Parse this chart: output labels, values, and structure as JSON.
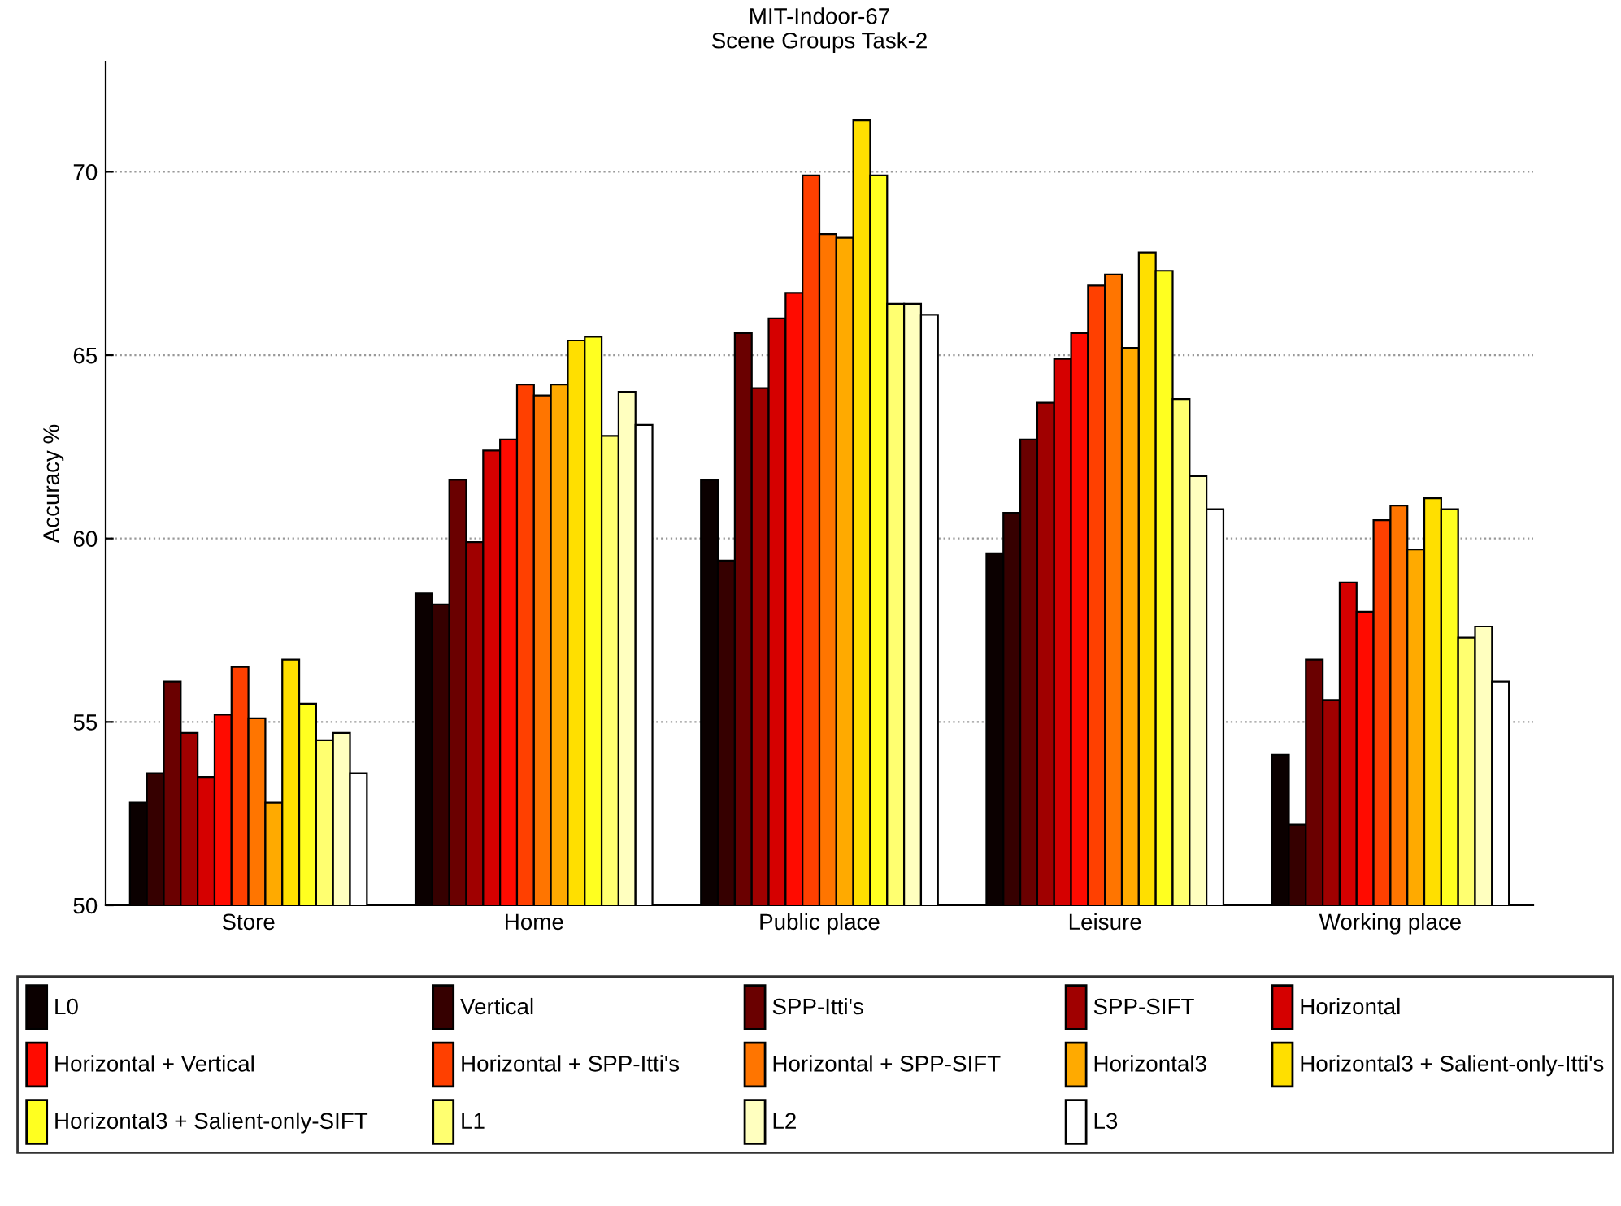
{
  "chart_data": {
    "type": "bar",
    "title": "MIT-Indoor-67\nScene Groups Task-2",
    "ylabel": "Accuracy %",
    "categories": [
      "Store",
      "Home",
      "Public place",
      "Leisure",
      "Working place"
    ],
    "ylim": [
      50,
      73
    ],
    "yticks": [
      50,
      55,
      60,
      65,
      70
    ],
    "grid": "y",
    "legend": "bottom",
    "series": [
      {
        "name": "L0",
        "color": "#0b0000",
        "values": [
          52.8,
          58.5,
          61.6,
          59.6,
          54.1
        ]
      },
      {
        "name": "Vertical",
        "color": "#360000",
        "values": [
          53.6,
          58.2,
          59.4,
          60.7,
          52.2
        ]
      },
      {
        "name": "SPP-Itti's",
        "color": "#6a0000",
        "values": [
          56.1,
          61.6,
          65.6,
          62.7,
          56.7
        ]
      },
      {
        "name": "SPP-SIFT",
        "color": "#a00000",
        "values": [
          54.7,
          59.9,
          64.1,
          63.7,
          55.6
        ]
      },
      {
        "name": "Horizontal",
        "color": "#d50000",
        "values": [
          53.5,
          62.4,
          66.0,
          64.9,
          58.8
        ]
      },
      {
        "name": "Horizontal + Vertical",
        "color": "#ff0b00",
        "values": [
          55.2,
          62.7,
          66.7,
          65.6,
          58.0
        ]
      },
      {
        "name": "Horizontal + SPP-Itti's",
        "color": "#ff4000",
        "values": [
          56.5,
          64.2,
          69.9,
          66.9,
          60.5
        ]
      },
      {
        "name": "Horizontal + SPP-SIFT",
        "color": "#ff7500",
        "values": [
          55.1,
          63.9,
          68.3,
          67.2,
          60.9
        ]
      },
      {
        "name": "Horizontal3",
        "color": "#ffaa00",
        "values": [
          52.8,
          64.2,
          68.2,
          65.2,
          59.7
        ]
      },
      {
        "name": "Horizontal3 + Salient-only-Itti's",
        "color": "#ffdf00",
        "values": [
          56.7,
          65.4,
          71.4,
          67.8,
          61.1
        ]
      },
      {
        "name": "Horizontal3 + Salient-only-SIFT",
        "color": "#ffff20",
        "values": [
          55.5,
          65.5,
          69.9,
          67.3,
          60.8
        ]
      },
      {
        "name": "L1",
        "color": "#ffff70",
        "values": [
          54.5,
          62.8,
          66.4,
          63.8,
          57.3
        ]
      },
      {
        "name": "L2",
        "color": "#ffffbf",
        "values": [
          54.7,
          64.0,
          66.4,
          61.7,
          57.6
        ]
      },
      {
        "name": "L3",
        "color": "#ffffff",
        "values": [
          53.6,
          63.1,
          66.1,
          60.8,
          56.1
        ]
      }
    ]
  }
}
